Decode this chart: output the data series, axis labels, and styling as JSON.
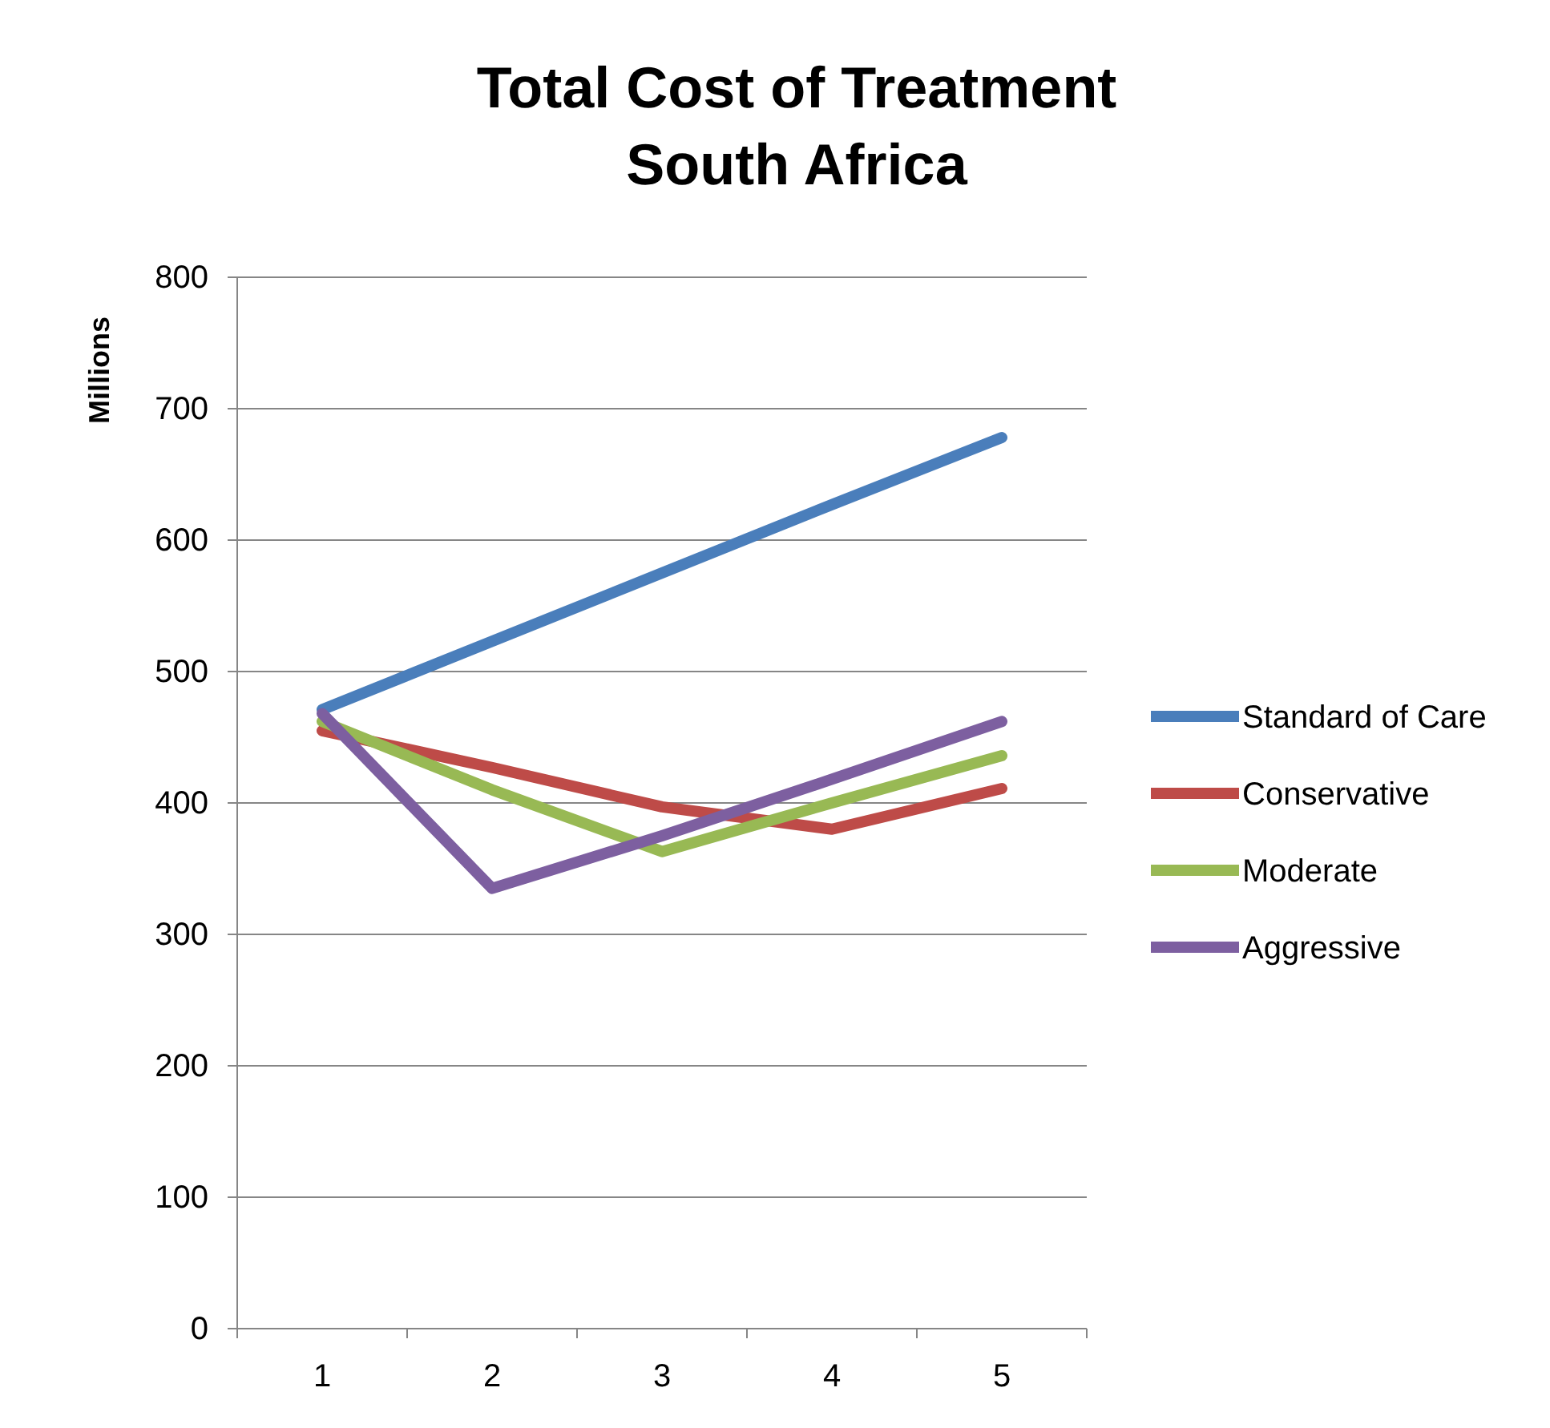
{
  "chart_data": {
    "type": "line",
    "title": "Total Cost of Treatment\nSouth Africa",
    "ylabel": "Millions",
    "categories": [
      "1",
      "2",
      "3",
      "4",
      "5"
    ],
    "series": [
      {
        "name": "Standard of Care",
        "color": "#4a7ebb",
        "values": [
          471,
          523,
          575,
          627,
          678
        ]
      },
      {
        "name": "Conservative",
        "color": "#be4b48",
        "values": [
          455,
          427,
          397,
          380,
          411
        ]
      },
      {
        "name": "Moderate",
        "color": "#98b954",
        "values": [
          462,
          410,
          363,
          400,
          436
        ]
      },
      {
        "name": "Aggressive",
        "color": "#7d5fa0",
        "values": [
          468,
          335,
          375,
          418,
          462
        ]
      }
    ],
    "ylim": [
      0,
      800
    ],
    "yticks": [
      0,
      100,
      200,
      300,
      400,
      500,
      600,
      700,
      800
    ],
    "grid": "y",
    "legend": "right",
    "marker": "none",
    "line_style": "solid"
  }
}
